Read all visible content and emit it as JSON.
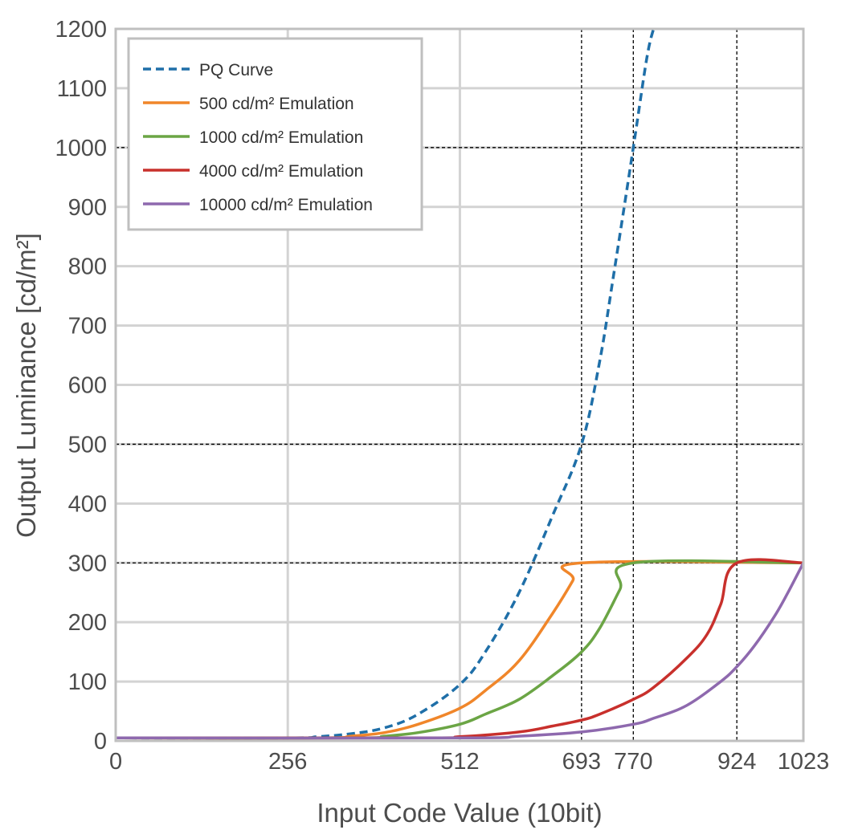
{
  "chart_data": {
    "type": "line",
    "title": "",
    "xlabel": "Input Code Value (10bit)",
    "ylabel": "Output Luminance [cd/m²]",
    "xlim": [
      0,
      1023
    ],
    "ylim": [
      0,
      1200
    ],
    "grid": true,
    "legend_position": "top-left",
    "x_ticks": [
      0,
      256,
      512,
      693,
      770,
      924,
      1023
    ],
    "y_ticks": [
      0,
      100,
      200,
      300,
      400,
      500,
      600,
      700,
      800,
      900,
      1000,
      1100,
      1200
    ],
    "x_tick_labels": [
      "0",
      "256",
      "512",
      "693",
      "770",
      "924",
      "1023"
    ],
    "y_tick_labels": [
      "0",
      "100",
      "200",
      "300",
      "400",
      "500",
      "600",
      "700",
      "800",
      "900",
      "1000",
      "1100",
      "1200"
    ],
    "grid_x": [
      256,
      512,
      1023
    ],
    "grid_y": [
      100,
      200,
      300,
      400,
      500,
      600,
      700,
      800,
      900,
      1000,
      1100,
      1200
    ],
    "reference_lines": {
      "vertical": [
        693,
        770,
        924
      ],
      "horizontal": [
        300,
        500,
        1000
      ]
    },
    "series": [
      {
        "name": "PQ Curve",
        "color": "#1f6fa8",
        "dashed": true,
        "x": [
          0,
          256,
          300,
          350,
          400,
          450,
          512,
          550,
          600,
          650,
          693,
          720,
          740,
          770,
          790,
          800
        ],
        "y": [
          5,
          5,
          7,
          12,
          22,
          45,
          95,
          150,
          250,
          380,
          500,
          640,
          780,
          1000,
          1150,
          1200
        ]
      },
      {
        "name": "500 cd/m² Emulation",
        "color": "#f0862a",
        "dashed": false,
        "x": [
          0,
          300,
          350,
          400,
          450,
          512,
          550,
          600,
          650,
          680,
          693,
          1023
        ],
        "y": [
          5,
          5,
          8,
          14,
          28,
          55,
          85,
          135,
          215,
          270,
          300,
          300
        ]
      },
      {
        "name": "1000 cd/m² Emulation",
        "color": "#6ba545",
        "dashed": false,
        "x": [
          0,
          350,
          400,
          450,
          512,
          550,
          600,
          650,
          693,
          720,
          750,
          770,
          1023
        ],
        "y": [
          5,
          5,
          8,
          14,
          28,
          45,
          70,
          110,
          150,
          190,
          255,
          300,
          300
        ]
      },
      {
        "name": "4000 cd/m² Emulation",
        "color": "#c8302c",
        "dashed": false,
        "x": [
          0,
          450,
          512,
          600,
          650,
          693,
          720,
          770,
          800,
          850,
          880,
          900,
          924,
          1023
        ],
        "y": [
          5,
          5,
          7,
          15,
          25,
          35,
          45,
          70,
          90,
          140,
          180,
          230,
          300,
          300
        ]
      },
      {
        "name": "10000 cd/m² Emulation",
        "color": "#8e69ae",
        "dashed": false,
        "x": [
          0,
          512,
          600,
          693,
          770,
          800,
          850,
          900,
          924,
          950,
          980,
          1000,
          1023
        ],
        "y": [
          5,
          5,
          8,
          15,
          28,
          38,
          60,
          100,
          125,
          160,
          210,
          250,
          300
        ]
      }
    ]
  }
}
